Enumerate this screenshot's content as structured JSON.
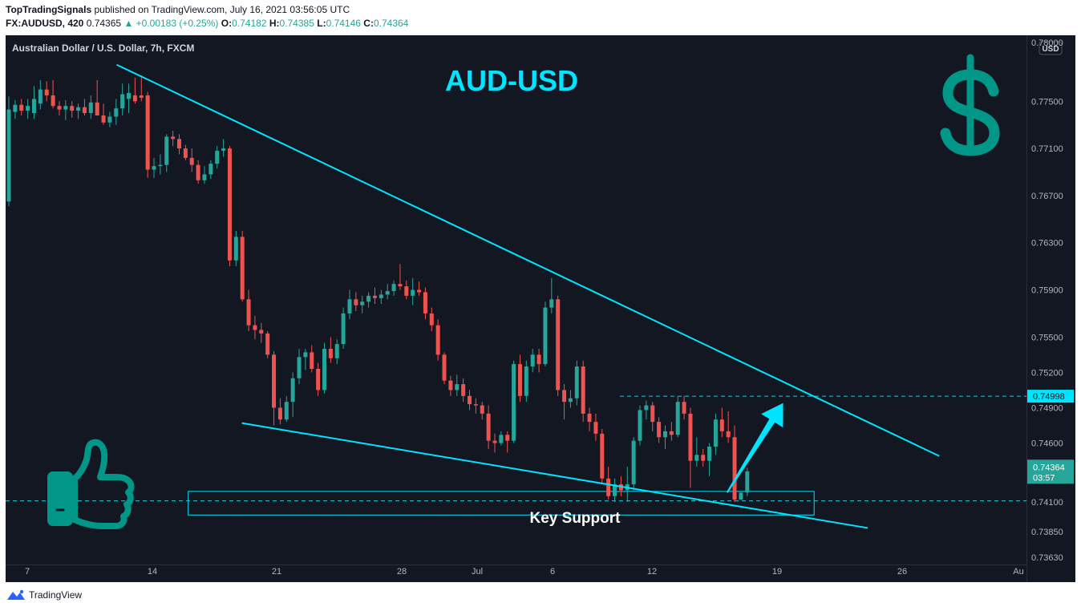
{
  "header": {
    "publisher": "TopTradingSignals",
    "published_text": "published on TradingView.com, July 16, 2021 03:56:05 UTC",
    "symbol": "FX:AUDUSD, 420",
    "last": "0.74365",
    "change": "▲ +0.00183 (+0.25%)",
    "open_label": "O:",
    "open": "0.74182",
    "high_label": "H:",
    "high": "0.74385",
    "low_label": "L:",
    "low": "0.74146",
    "close_label": "C:",
    "close": "0.74364"
  },
  "footer": {
    "brand": "TradingView",
    "brand_icon": "tradingview-logo-icon"
  },
  "colors": {
    "background": "#131722",
    "up": "#26a69a",
    "down": "#ef5350",
    "trendline": "#00e5ff",
    "pair_title": "#00e5ff",
    "dollar": "#009688",
    "thumb": "#009688"
  },
  "chart_data": {
    "type": "candlestick",
    "title": "Australian Dollar / U.S. Dollar, 7h, FXCM",
    "currency_button": "USD",
    "pair_label": "AUD-USD",
    "support_label": "Key Support",
    "price_ticks": [
      "0.78000",
      "0.77500",
      "0.77100",
      "0.76700",
      "0.76300",
      "0.75900",
      "0.75500",
      "0.75200",
      "0.74900",
      "0.74600",
      "0.74100",
      "0.73850",
      "0.73630"
    ],
    "time_ticks": [
      "7",
      "14",
      "21",
      "28",
      "Jul",
      "6",
      "12",
      "19",
      "26",
      "Au"
    ],
    "ylim": [
      0.7357,
      0.7806
    ],
    "level_line": {
      "price": 0.74998,
      "label": "0.74998"
    },
    "current_price": {
      "price": 0.74364,
      "label": "0.74364",
      "countdown": "03:57"
    },
    "support_line_price": 0.7411,
    "support_zone": {
      "from_date": "2021-06-16",
      "to_date": "2021-07-21",
      "low": 0.7399,
      "high": 0.7419
    },
    "trendlines": [
      {
        "name": "resistance",
        "from": {
          "date": "2021-06-12",
          "price": 0.7781
        },
        "to": {
          "date": "2021-07-28",
          "price": 0.7449
        }
      },
      {
        "name": "support",
        "from": {
          "date": "2021-06-19",
          "price": 0.7477
        },
        "to": {
          "date": "2021-07-24",
          "price": 0.7388
        }
      }
    ],
    "arrow": {
      "from": {
        "date": "2021-07-16",
        "price": 0.7418
      },
      "to": {
        "date": "2021-07-19",
        "price": 0.7494
      }
    },
    "candles": [
      {
        "o": 0.7665,
        "h": 0.7754,
        "l": 0.7661,
        "c": 0.7743
      },
      {
        "o": 0.7741,
        "h": 0.7751,
        "l": 0.7735,
        "c": 0.7747
      },
      {
        "o": 0.7747,
        "h": 0.7752,
        "l": 0.7738,
        "c": 0.7742
      },
      {
        "o": 0.7742,
        "h": 0.7752,
        "l": 0.7735,
        "c": 0.7746
      },
      {
        "o": 0.774,
        "h": 0.7763,
        "l": 0.7735,
        "c": 0.7752
      },
      {
        "o": 0.7748,
        "h": 0.7768,
        "l": 0.7743,
        "c": 0.776
      },
      {
        "o": 0.776,
        "h": 0.7767,
        "l": 0.775,
        "c": 0.7755
      },
      {
        "o": 0.7755,
        "h": 0.7768,
        "l": 0.7744,
        "c": 0.7746
      },
      {
        "o": 0.7746,
        "h": 0.775,
        "l": 0.7738,
        "c": 0.7743
      },
      {
        "o": 0.7743,
        "h": 0.7751,
        "l": 0.7734,
        "c": 0.7746
      },
      {
        "o": 0.7746,
        "h": 0.775,
        "l": 0.7736,
        "c": 0.7742
      },
      {
        "o": 0.7742,
        "h": 0.7748,
        "l": 0.7735,
        "c": 0.7745
      },
      {
        "o": 0.7745,
        "h": 0.7752,
        "l": 0.7738,
        "c": 0.774
      },
      {
        "o": 0.774,
        "h": 0.7755,
        "l": 0.7735,
        "c": 0.7749
      },
      {
        "o": 0.7749,
        "h": 0.7768,
        "l": 0.774,
        "c": 0.7738
      },
      {
        "o": 0.7738,
        "h": 0.7748,
        "l": 0.773,
        "c": 0.7732
      },
      {
        "o": 0.7732,
        "h": 0.7741,
        "l": 0.7728,
        "c": 0.7737
      },
      {
        "o": 0.7737,
        "h": 0.7752,
        "l": 0.773,
        "c": 0.7744
      },
      {
        "o": 0.7744,
        "h": 0.7765,
        "l": 0.7738,
        "c": 0.7756
      },
      {
        "o": 0.7752,
        "h": 0.7765,
        "l": 0.774,
        "c": 0.7757
      },
      {
        "o": 0.7755,
        "h": 0.777,
        "l": 0.7748,
        "c": 0.775
      },
      {
        "o": 0.7755,
        "h": 0.7772,
        "l": 0.775,
        "c": 0.7753
      },
      {
        "o": 0.7755,
        "h": 0.7758,
        "l": 0.7685,
        "c": 0.7692
      },
      {
        "o": 0.7692,
        "h": 0.7702,
        "l": 0.7685,
        "c": 0.7695
      },
      {
        "o": 0.7695,
        "h": 0.7705,
        "l": 0.7688,
        "c": 0.7696
      },
      {
        "o": 0.7696,
        "h": 0.7722,
        "l": 0.769,
        "c": 0.772
      },
      {
        "o": 0.772,
        "h": 0.7725,
        "l": 0.7712,
        "c": 0.7718
      },
      {
        "o": 0.7718,
        "h": 0.7722,
        "l": 0.7705,
        "c": 0.771
      },
      {
        "o": 0.771,
        "h": 0.7713,
        "l": 0.77,
        "c": 0.7702
      },
      {
        "o": 0.7702,
        "h": 0.771,
        "l": 0.769,
        "c": 0.7696
      },
      {
        "o": 0.7696,
        "h": 0.77,
        "l": 0.768,
        "c": 0.7683
      },
      {
        "o": 0.7683,
        "h": 0.7695,
        "l": 0.768,
        "c": 0.7688
      },
      {
        "o": 0.7688,
        "h": 0.77,
        "l": 0.7684,
        "c": 0.7697
      },
      {
        "o": 0.7697,
        "h": 0.7712,
        "l": 0.7693,
        "c": 0.7708
      },
      {
        "o": 0.7708,
        "h": 0.7718,
        "l": 0.7703,
        "c": 0.771
      },
      {
        "o": 0.771,
        "h": 0.7712,
        "l": 0.761,
        "c": 0.7615
      },
      {
        "o": 0.7615,
        "h": 0.764,
        "l": 0.761,
        "c": 0.7635
      },
      {
        "o": 0.7635,
        "h": 0.764,
        "l": 0.758,
        "c": 0.7582
      },
      {
        "o": 0.7582,
        "h": 0.759,
        "l": 0.7555,
        "c": 0.756
      },
      {
        "o": 0.756,
        "h": 0.7568,
        "l": 0.7548,
        "c": 0.7556
      },
      {
        "o": 0.7556,
        "h": 0.7562,
        "l": 0.7545,
        "c": 0.7553
      },
      {
        "o": 0.7553,
        "h": 0.7555,
        "l": 0.7532,
        "c": 0.7535
      },
      {
        "o": 0.7535,
        "h": 0.7538,
        "l": 0.7475,
        "c": 0.749
      },
      {
        "o": 0.749,
        "h": 0.7498,
        "l": 0.7476,
        "c": 0.748
      },
      {
        "o": 0.748,
        "h": 0.75,
        "l": 0.7478,
        "c": 0.7495
      },
      {
        "o": 0.7495,
        "h": 0.752,
        "l": 0.7482,
        "c": 0.7515
      },
      {
        "o": 0.7515,
        "h": 0.754,
        "l": 0.751,
        "c": 0.7533
      },
      {
        "o": 0.7533,
        "h": 0.754,
        "l": 0.7522,
        "c": 0.7537
      },
      {
        "o": 0.7537,
        "h": 0.7543,
        "l": 0.752,
        "c": 0.7523
      },
      {
        "o": 0.7523,
        "h": 0.7528,
        "l": 0.75,
        "c": 0.7505
      },
      {
        "o": 0.7505,
        "h": 0.7545,
        "l": 0.7502,
        "c": 0.754
      },
      {
        "o": 0.754,
        "h": 0.755,
        "l": 0.7528,
        "c": 0.7532
      },
      {
        "o": 0.7532,
        "h": 0.7548,
        "l": 0.7527,
        "c": 0.7544
      },
      {
        "o": 0.7544,
        "h": 0.7575,
        "l": 0.754,
        "c": 0.757
      },
      {
        "o": 0.757,
        "h": 0.759,
        "l": 0.7565,
        "c": 0.7582
      },
      {
        "o": 0.7582,
        "h": 0.7588,
        "l": 0.7572,
        "c": 0.7577
      },
      {
        "o": 0.7577,
        "h": 0.7585,
        "l": 0.757,
        "c": 0.758
      },
      {
        "o": 0.758,
        "h": 0.7588,
        "l": 0.7575,
        "c": 0.7585
      },
      {
        "o": 0.7585,
        "h": 0.7592,
        "l": 0.7578,
        "c": 0.7583
      },
      {
        "o": 0.7583,
        "h": 0.759,
        "l": 0.7578,
        "c": 0.7586
      },
      {
        "o": 0.7586,
        "h": 0.7595,
        "l": 0.7582,
        "c": 0.7589
      },
      {
        "o": 0.7589,
        "h": 0.7598,
        "l": 0.7585,
        "c": 0.7595
      },
      {
        "o": 0.7595,
        "h": 0.7612,
        "l": 0.759,
        "c": 0.7593
      },
      {
        "o": 0.7593,
        "h": 0.7598,
        "l": 0.7582,
        "c": 0.7585
      },
      {
        "o": 0.7585,
        "h": 0.76,
        "l": 0.7577,
        "c": 0.759
      },
      {
        "o": 0.759,
        "h": 0.7597,
        "l": 0.7585,
        "c": 0.7588
      },
      {
        "o": 0.7588,
        "h": 0.7592,
        "l": 0.7565,
        "c": 0.757
      },
      {
        "o": 0.757,
        "h": 0.7575,
        "l": 0.7555,
        "c": 0.756
      },
      {
        "o": 0.756,
        "h": 0.7565,
        "l": 0.753,
        "c": 0.7535
      },
      {
        "o": 0.7535,
        "h": 0.7537,
        "l": 0.751,
        "c": 0.7513
      },
      {
        "o": 0.7513,
        "h": 0.7517,
        "l": 0.75,
        "c": 0.7505
      },
      {
        "o": 0.7505,
        "h": 0.7518,
        "l": 0.75,
        "c": 0.751
      },
      {
        "o": 0.751,
        "h": 0.7515,
        "l": 0.7495,
        "c": 0.75
      },
      {
        "o": 0.75,
        "h": 0.7505,
        "l": 0.7488,
        "c": 0.7493
      },
      {
        "o": 0.7493,
        "h": 0.7498,
        "l": 0.7485,
        "c": 0.7492
      },
      {
        "o": 0.7492,
        "h": 0.7495,
        "l": 0.748,
        "c": 0.7485
      },
      {
        "o": 0.7485,
        "h": 0.7492,
        "l": 0.7455,
        "c": 0.7462
      },
      {
        "o": 0.7462,
        "h": 0.7468,
        "l": 0.7452,
        "c": 0.746
      },
      {
        "o": 0.746,
        "h": 0.747,
        "l": 0.7458,
        "c": 0.7467
      },
      {
        "o": 0.7467,
        "h": 0.747,
        "l": 0.7452,
        "c": 0.7462
      },
      {
        "o": 0.7462,
        "h": 0.753,
        "l": 0.746,
        "c": 0.7527
      },
      {
        "o": 0.7527,
        "h": 0.7535,
        "l": 0.7495,
        "c": 0.75
      },
      {
        "o": 0.75,
        "h": 0.753,
        "l": 0.7495,
        "c": 0.7525
      },
      {
        "o": 0.7525,
        "h": 0.754,
        "l": 0.752,
        "c": 0.7535
      },
      {
        "o": 0.7535,
        "h": 0.754,
        "l": 0.752,
        "c": 0.7527
      },
      {
        "o": 0.7527,
        "h": 0.758,
        "l": 0.7525,
        "c": 0.7575
      },
      {
        "o": 0.7575,
        "h": 0.76,
        "l": 0.757,
        "c": 0.7582
      },
      {
        "o": 0.7582,
        "h": 0.7585,
        "l": 0.75,
        "c": 0.7505
      },
      {
        "o": 0.7505,
        "h": 0.751,
        "l": 0.748,
        "c": 0.7495
      },
      {
        "o": 0.7495,
        "h": 0.7505,
        "l": 0.749,
        "c": 0.7498
      },
      {
        "o": 0.7498,
        "h": 0.753,
        "l": 0.7492,
        "c": 0.7525
      },
      {
        "o": 0.7525,
        "h": 0.753,
        "l": 0.7478,
        "c": 0.7485
      },
      {
        "o": 0.7485,
        "h": 0.749,
        "l": 0.747,
        "c": 0.7478
      },
      {
        "o": 0.7478,
        "h": 0.7485,
        "l": 0.7462,
        "c": 0.7468
      },
      {
        "o": 0.7468,
        "h": 0.7472,
        "l": 0.7425,
        "c": 0.743
      },
      {
        "o": 0.743,
        "h": 0.744,
        "l": 0.7412,
        "c": 0.7415
      },
      {
        "o": 0.7415,
        "h": 0.743,
        "l": 0.741,
        "c": 0.7425
      },
      {
        "o": 0.7425,
        "h": 0.7432,
        "l": 0.7415,
        "c": 0.742
      },
      {
        "o": 0.742,
        "h": 0.744,
        "l": 0.741,
        "c": 0.7425
      },
      {
        "o": 0.7425,
        "h": 0.7465,
        "l": 0.742,
        "c": 0.7462
      },
      {
        "o": 0.7462,
        "h": 0.7492,
        "l": 0.7458,
        "c": 0.7488
      },
      {
        "o": 0.7488,
        "h": 0.7496,
        "l": 0.748,
        "c": 0.7492
      },
      {
        "o": 0.7492,
        "h": 0.7495,
        "l": 0.747,
        "c": 0.7478
      },
      {
        "o": 0.7478,
        "h": 0.7482,
        "l": 0.746,
        "c": 0.7465
      },
      {
        "o": 0.7465,
        "h": 0.7475,
        "l": 0.7455,
        "c": 0.747
      },
      {
        "o": 0.747,
        "h": 0.7478,
        "l": 0.7462,
        "c": 0.7467
      },
      {
        "o": 0.7467,
        "h": 0.75,
        "l": 0.7465,
        "c": 0.7495
      },
      {
        "o": 0.7495,
        "h": 0.75,
        "l": 0.748,
        "c": 0.7485
      },
      {
        "o": 0.7485,
        "h": 0.749,
        "l": 0.7422,
        "c": 0.7445
      },
      {
        "o": 0.7445,
        "h": 0.7465,
        "l": 0.744,
        "c": 0.745
      },
      {
        "o": 0.745,
        "h": 0.7455,
        "l": 0.744,
        "c": 0.7445
      },
      {
        "o": 0.7445,
        "h": 0.746,
        "l": 0.7432,
        "c": 0.7457
      },
      {
        "o": 0.7457,
        "h": 0.7485,
        "l": 0.745,
        "c": 0.748
      },
      {
        "o": 0.748,
        "h": 0.749,
        "l": 0.7465,
        "c": 0.747
      },
      {
        "o": 0.747,
        "h": 0.7487,
        "l": 0.746,
        "c": 0.7465
      },
      {
        "o": 0.7465,
        "h": 0.7475,
        "l": 0.741,
        "c": 0.7412
      },
      {
        "o": 0.7412,
        "h": 0.7418,
        "l": 0.7412,
        "c": 0.7418
      },
      {
        "o": 0.7418,
        "h": 0.7439,
        "l": 0.7415,
        "c": 0.7436
      }
    ]
  }
}
